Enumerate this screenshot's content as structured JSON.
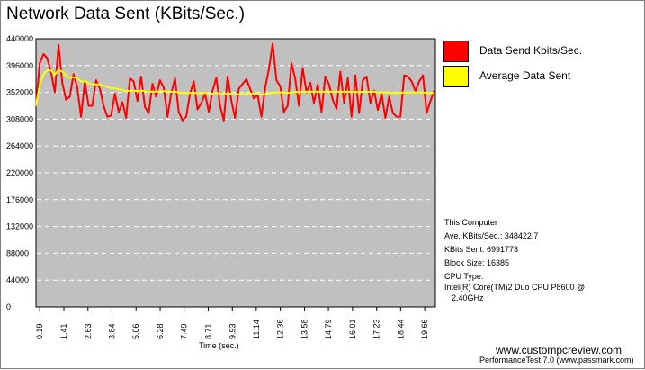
{
  "title": "Network Data Sent (KBits/Sec.)",
  "legend": {
    "items": [
      {
        "label": "Data Send Kbits/Sec.",
        "color": "#ff0000"
      },
      {
        "label": "Average Data Sent",
        "color": "#ffff00"
      }
    ]
  },
  "info": {
    "heading": "This Computer",
    "ave": "Ave. KBits/Sec.: 348422.7",
    "sent": "KBits Sent: 6991773",
    "block": "Block Size: 16385",
    "cpu_label": "CPU Type:",
    "cpu_line1": "Intel(R) Core(TM)2 Duo CPU P8600 @",
    "cpu_line2": "2.40GHz"
  },
  "footer": {
    "site": "www.custompcreview.com",
    "product": "PerformanceTest 7.0 (www.passmark.com)"
  },
  "colors": {
    "plot_bg": "#c0c0c0",
    "grid": "#ffffff",
    "series1": "#ff0000",
    "series2": "#ffff00"
  },
  "chart_data": {
    "type": "line",
    "title": "Network Data Sent (KBits/Sec.)",
    "xlabel": "Time (sec.)",
    "ylabel": "",
    "ylim": [
      0,
      440000
    ],
    "xlim": [
      0,
      20.2
    ],
    "grid": true,
    "legend_position": "right",
    "yticks": [
      "440000",
      "396000",
      "352000",
      "308000",
      "264000",
      "220000",
      "176000",
      "132000",
      "88000",
      "44000",
      "0"
    ],
    "xticks": [
      "0.19",
      "1.41",
      "2.63",
      "3.84",
      "5.06",
      "6.28",
      "7.49",
      "8.71",
      "9.93",
      "11.14",
      "12.36",
      "13.58",
      "14.79",
      "16.01",
      "17.23",
      "18.44",
      "19.66"
    ],
    "xtick_values": [
      0.19,
      1.41,
      2.63,
      3.84,
      5.06,
      6.28,
      7.49,
      8.71,
      9.93,
      11.14,
      12.36,
      13.58,
      14.79,
      16.01,
      17.23,
      18.44,
      19.66
    ],
    "series": [
      {
        "name": "Data Send Kbits/Sec.",
        "x": [
          0.0,
          0.19,
          0.38,
          0.57,
          0.76,
          0.95,
          1.14,
          1.33,
          1.52,
          1.71,
          1.9,
          2.09,
          2.28,
          2.47,
          2.66,
          2.85,
          3.04,
          3.23,
          3.42,
          3.61,
          3.8,
          3.99,
          4.18,
          4.37,
          4.56,
          4.75,
          4.94,
          5.13,
          5.32,
          5.51,
          5.7,
          5.89,
          6.08,
          6.27,
          6.46,
          6.65,
          6.84,
          7.03,
          7.22,
          7.41,
          7.6,
          7.79,
          7.98,
          8.17,
          8.36,
          8.55,
          8.74,
          8.93,
          9.12,
          9.31,
          9.5,
          9.69,
          9.88,
          10.07,
          10.26,
          10.45,
          10.64,
          10.83,
          11.02,
          11.21,
          11.4,
          11.59,
          11.78,
          11.97,
          12.16,
          12.35,
          12.54,
          12.73,
          12.92,
          13.11,
          13.3,
          13.49,
          13.68,
          13.87,
          14.06,
          14.25,
          14.44,
          14.63,
          14.82,
          15.01,
          15.2,
          15.39,
          15.58,
          15.77,
          15.96,
          16.15,
          16.34,
          16.53,
          16.72,
          16.91,
          17.1,
          17.29,
          17.48,
          17.67,
          17.86,
          18.05,
          18.24,
          18.43,
          18.62,
          18.81,
          19.0,
          19.19,
          19.38,
          19.57,
          19.76,
          19.95,
          20.14
        ],
        "values": [
          330000,
          400000,
          415000,
          408000,
          385000,
          352000,
          430000,
          368000,
          340000,
          345000,
          382000,
          360000,
          312000,
          370000,
          330000,
          330000,
          372000,
          358000,
          330000,
          312000,
          314000,
          350000,
          320000,
          336000,
          310000,
          375000,
          370000,
          338000,
          378000,
          328000,
          318000,
          366000,
          345000,
          372000,
          360000,
          312000,
          350000,
          375000,
          320000,
          306000,
          312000,
          350000,
          370000,
          324000,
          335000,
          350000,
          320000,
          355000,
          376000,
          330000,
          306000,
          378000,
          338000,
          310000,
          358000,
          366000,
          374000,
          358000,
          342000,
          348000,
          312000,
          360000,
          390000,
          432000,
          372000,
          362000,
          320000,
          330000,
          400000,
          374000,
          330000,
          392000,
          352000,
          368000,
          335000,
          365000,
          320000,
          378000,
          365000,
          340000,
          325000,
          386000,
          335000,
          375000,
          312000,
          380000,
          318000,
          372000,
          378000,
          335000,
          355000,
          323000,
          350000,
          310000,
          345000,
          318000,
          312000,
          312000,
          380000,
          378000,
          370000,
          354000,
          370000,
          380000,
          318000,
          338000,
          355000
        ],
        "color": "#ff0000"
      },
      {
        "name": "Average Data Sent",
        "x": [
          0.0,
          0.19,
          0.38,
          0.57,
          0.76,
          0.95,
          1.14,
          1.33,
          1.52,
          1.71,
          1.9,
          2.09,
          2.28,
          2.47,
          2.66,
          2.85,
          3.04,
          3.23,
          3.42,
          3.61,
          3.8,
          3.99,
          4.18,
          4.37,
          4.56,
          4.75,
          4.94,
          5.13,
          5.32,
          5.51,
          5.7,
          5.89,
          6.08,
          6.27,
          6.46,
          6.65,
          6.84,
          7.03,
          7.22,
          7.41,
          7.6,
          7.79,
          7.98,
          8.17,
          8.36,
          8.55,
          8.74,
          8.93,
          9.12,
          9.31,
          9.5,
          9.69,
          9.88,
          10.07,
          10.26,
          10.45,
          10.64,
          10.83,
          11.02,
          11.21,
          11.4,
          11.59,
          11.78,
          11.97,
          12.16,
          12.35,
          12.54,
          12.73,
          12.92,
          13.11,
          13.3,
          13.49,
          13.68,
          13.87,
          14.06,
          14.25,
          14.44,
          14.63,
          14.82,
          15.01,
          15.2,
          15.39,
          15.58,
          15.77,
          15.96,
          16.15,
          16.34,
          16.53,
          16.72,
          16.91,
          17.1,
          17.29,
          17.48,
          17.67,
          17.86,
          18.05,
          18.24,
          18.43,
          18.62,
          18.81,
          19.0,
          19.19,
          19.38,
          19.57,
          19.76,
          19.95,
          20.14
        ],
        "values": [
          330000,
          365000,
          382000,
          388000,
          388000,
          381000,
          389000,
          386000,
          380000,
          376000,
          377000,
          375000,
          370000,
          370000,
          367000,
          365000,
          365000,
          365000,
          363000,
          361000,
          359000,
          359000,
          357000,
          356000,
          354000,
          355000,
          355000,
          354000,
          355000,
          354000,
          353000,
          353000,
          353000,
          354000,
          354000,
          353000,
          353000,
          353000,
          352000,
          351000,
          351000,
          351000,
          351000,
          351000,
          351000,
          351000,
          350000,
          350000,
          351000,
          350000,
          349000,
          350000,
          350000,
          349000,
          349000,
          349000,
          350000,
          350000,
          350000,
          350000,
          349000,
          349000,
          350000,
          352000,
          352000,
          352000,
          352000,
          351000,
          352000,
          353000,
          352000,
          353000,
          353000,
          353000,
          353000,
          353000,
          353000,
          353000,
          353000,
          353000,
          353000,
          353000,
          353000,
          353000,
          353000,
          353000,
          352000,
          353000,
          353000,
          353000,
          353000,
          352000,
          352000,
          352000,
          352000,
          351000,
          351000,
          351000,
          352000,
          352000,
          352000,
          352000,
          352000,
          352000,
          351000,
          351000,
          351000
        ],
        "color": "#ffff00"
      }
    ]
  }
}
